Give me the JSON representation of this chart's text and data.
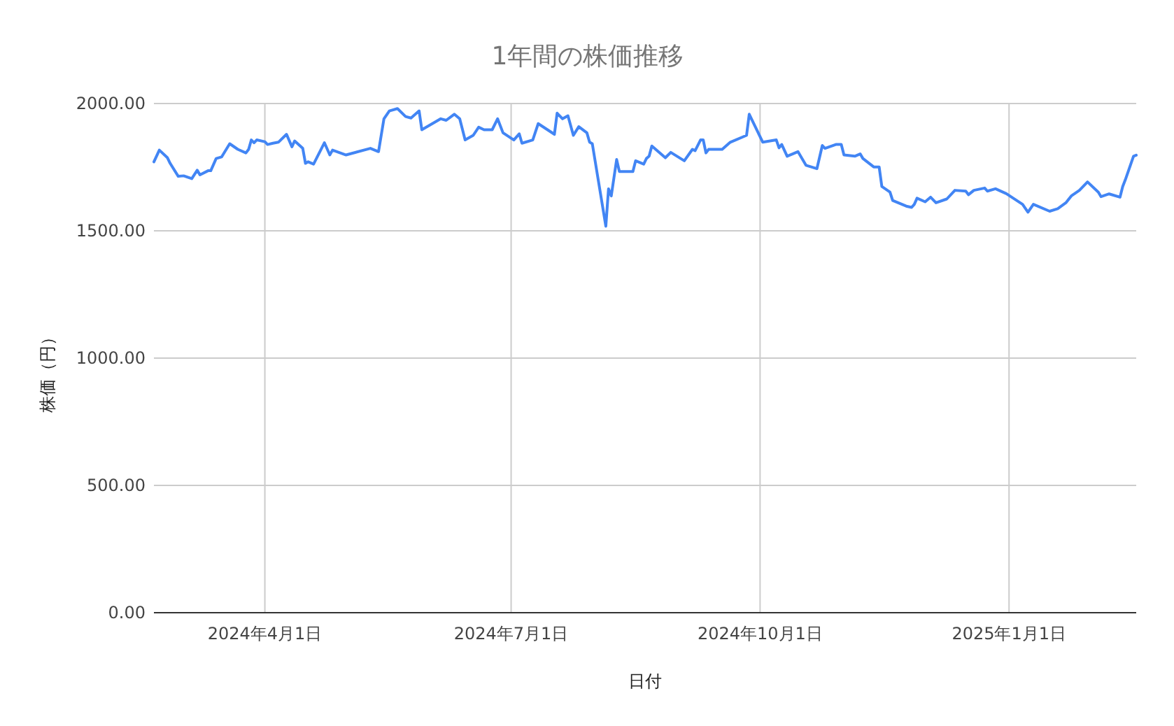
{
  "chart_data": {
    "type": "line",
    "title": "1年間の株価推移",
    "xlabel": "日付",
    "ylabel": "株価（円）",
    "grid": true,
    "marker": "none",
    "line_style": "solid",
    "xlim": [
      "2024-02-20",
      "2025-02-17"
    ],
    "xticks": [
      {
        "value": "2024-04-01",
        "label": "2024年4月1日"
      },
      {
        "value": "2024-07-01",
        "label": "2024年7月1日"
      },
      {
        "value": "2024-10-01",
        "label": "2024年10月1日"
      },
      {
        "value": "2025-01-01",
        "label": "2025年1月1日"
      }
    ],
    "ylim": [
      0,
      2000
    ],
    "yticks": [
      {
        "value": 0,
        "label": "0.00"
      },
      {
        "value": 500,
        "label": "500.00"
      },
      {
        "value": 1000,
        "label": "1000.00"
      },
      {
        "value": 1500,
        "label": "1500.00"
      },
      {
        "value": 2000,
        "label": "2000.00"
      }
    ],
    "x": [
      "2024-02-20",
      "2024-02-22",
      "2024-02-25",
      "2024-02-26",
      "2024-02-29",
      "2024-03-02",
      "2024-03-05",
      "2024-03-07",
      "2024-03-08",
      "2024-03-11",
      "2024-03-12",
      "2024-03-14",
      "2024-03-16",
      "2024-03-19",
      "2024-03-22",
      "2024-03-25",
      "2024-03-26",
      "2024-03-27",
      "2024-03-28",
      "2024-03-29",
      "2024-04-01",
      "2024-04-02",
      "2024-04-04",
      "2024-04-06",
      "2024-04-09",
      "2024-04-11",
      "2024-04-12",
      "2024-04-15",
      "2024-04-16",
      "2024-04-17",
      "2024-04-19",
      "2024-04-23",
      "2024-04-25",
      "2024-04-26",
      "2024-05-01",
      "2024-05-10",
      "2024-05-13",
      "2024-05-15",
      "2024-05-17",
      "2024-05-20",
      "2024-05-23",
      "2024-05-25",
      "2024-05-28",
      "2024-05-29",
      "2024-06-05",
      "2024-06-07",
      "2024-06-10",
      "2024-06-12",
      "2024-06-14",
      "2024-06-17",
      "2024-06-19",
      "2024-06-21",
      "2024-06-24",
      "2024-06-26",
      "2024-06-28",
      "2024-07-02",
      "2024-07-04",
      "2024-07-05",
      "2024-07-09",
      "2024-07-11",
      "2024-07-17",
      "2024-07-18",
      "2024-07-20",
      "2024-07-22",
      "2024-07-24",
      "2024-07-26",
      "2024-07-29",
      "2024-07-30",
      "2024-07-31",
      "2024-08-05",
      "2024-08-06",
      "2024-08-07",
      "2024-08-09",
      "2024-08-10",
      "2024-08-15",
      "2024-08-16",
      "2024-08-19",
      "2024-08-20",
      "2024-08-21",
      "2024-08-22",
      "2024-08-27",
      "2024-08-29",
      "2024-09-03",
      "2024-09-06",
      "2024-09-07",
      "2024-09-09",
      "2024-09-10",
      "2024-09-11",
      "2024-09-12",
      "2024-09-17",
      "2024-09-20",
      "2024-09-26",
      "2024-09-27",
      "2024-10-02",
      "2024-10-07",
      "2024-10-08",
      "2024-10-09",
      "2024-10-11",
      "2024-10-15",
      "2024-10-18",
      "2024-10-22",
      "2024-10-24",
      "2024-10-25",
      "2024-10-29",
      "2024-10-31",
      "2024-11-01",
      "2024-11-05",
      "2024-11-07",
      "2024-11-08",
      "2024-11-12",
      "2024-11-14",
      "2024-11-15",
      "2024-11-18",
      "2024-11-19",
      "2024-11-24",
      "2024-11-26",
      "2024-11-27",
      "2024-11-28",
      "2024-12-01",
      "2024-12-03",
      "2024-12-05",
      "2024-12-09",
      "2024-12-12",
      "2024-12-16",
      "2024-12-17",
      "2024-12-19",
      "2024-12-23",
      "2024-12-24",
      "2024-12-27",
      "2024-12-31",
      "2025-01-06",
      "2025-01-08",
      "2025-01-10",
      "2025-01-16",
      "2025-01-19",
      "2025-01-22",
      "2025-01-24",
      "2025-01-27",
      "2025-01-30",
      "2025-02-03",
      "2025-02-04",
      "2025-02-07",
      "2025-02-11",
      "2025-02-12",
      "2025-02-13",
      "2025-02-16",
      "2025-02-17"
    ],
    "series": [
      {
        "color": "#4285f4",
        "values": [
          1771,
          1817,
          1787,
          1765,
          1714,
          1716,
          1705,
          1738,
          1720,
          1736,
          1736,
          1784,
          1790,
          1842,
          1820,
          1806,
          1820,
          1857,
          1846,
          1857,
          1850,
          1839,
          1844,
          1848,
          1879,
          1830,
          1853,
          1824,
          1765,
          1771,
          1762,
          1846,
          1798,
          1817,
          1798,
          1824,
          1811,
          1940,
          1971,
          1980,
          1949,
          1943,
          1971,
          1897,
          1940,
          1934,
          1958,
          1940,
          1857,
          1875,
          1907,
          1897,
          1897,
          1940,
          1885,
          1857,
          1881,
          1844,
          1857,
          1921,
          1879,
          1962,
          1940,
          1952,
          1875,
          1909,
          1885,
          1848,
          1842,
          1518,
          1665,
          1637,
          1780,
          1733,
          1733,
          1775,
          1762,
          1784,
          1793,
          1833,
          1787,
          1808,
          1775,
          1820,
          1815,
          1857,
          1857,
          1806,
          1820,
          1820,
          1848,
          1875,
          1958,
          1848,
          1857,
          1826,
          1839,
          1793,
          1811,
          1757,
          1744,
          1835,
          1824,
          1839,
          1839,
          1798,
          1793,
          1802,
          1784,
          1751,
          1751,
          1674,
          1652,
          1619,
          1597,
          1592,
          1604,
          1628,
          1614,
          1632,
          1610,
          1625,
          1659,
          1656,
          1642,
          1659,
          1668,
          1656,
          1665,
          1646,
          1604,
          1573,
          1604,
          1577,
          1587,
          1610,
          1637,
          1659,
          1692,
          1652,
          1634,
          1645,
          1632,
          1674,
          1701,
          1793,
          1797
        ]
      }
    ]
  }
}
